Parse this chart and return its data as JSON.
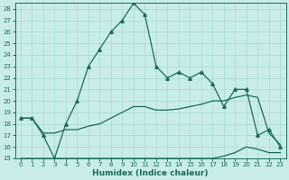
{
  "xlabel": "Humidex (Indice chaleur)",
  "background_color": "#c8ede8",
  "line_color": "#1a6b5a",
  "x": [
    0,
    1,
    2,
    3,
    4,
    5,
    6,
    7,
    8,
    9,
    10,
    11,
    12,
    13,
    14,
    15,
    16,
    17,
    18,
    19,
    20,
    21,
    22,
    23
  ],
  "y_main": [
    18.5,
    18.5,
    17.0,
    15.0,
    18.0,
    20.0,
    23.0,
    24.5,
    26.0,
    27.0,
    28.5,
    27.5,
    23.0,
    22.0,
    22.5,
    22.0,
    22.5,
    21.5,
    19.5,
    21.0,
    21.0,
    17.0,
    17.5,
    16.0
  ],
  "y_upper": [
    18.5,
    18.5,
    17.2,
    17.2,
    17.5,
    17.5,
    17.8,
    18.0,
    18.5,
    19.0,
    19.5,
    19.5,
    19.2,
    19.2,
    19.3,
    19.5,
    19.7,
    20.0,
    20.0,
    20.3,
    20.5,
    20.3,
    17.2,
    16.2
  ],
  "y_lower": [
    15.0,
    15.0,
    15.0,
    15.0,
    15.0,
    15.0,
    15.0,
    15.0,
    15.0,
    15.0,
    15.0,
    15.0,
    15.0,
    15.0,
    15.0,
    15.0,
    15.0,
    15.0,
    15.2,
    15.5,
    16.0,
    15.8,
    15.5,
    15.5
  ],
  "ylim": [
    15,
    28
  ],
  "ylim_top": 28.5,
  "xlim_left": -0.5,
  "xlim_right": 23.5,
  "yticks": [
    15,
    16,
    17,
    18,
    19,
    20,
    21,
    22,
    23,
    24,
    25,
    26,
    27,
    28
  ],
  "xticks": [
    0,
    1,
    2,
    3,
    4,
    5,
    6,
    7,
    8,
    9,
    10,
    11,
    12,
    13,
    14,
    15,
    16,
    17,
    18,
    19,
    20,
    21,
    22,
    23
  ],
  "grid_color": "#a8d8d0",
  "marker": "^",
  "markersize": 2.5,
  "linewidth": 0.9,
  "tick_fontsize": 5.0,
  "xlabel_fontsize": 6.5
}
